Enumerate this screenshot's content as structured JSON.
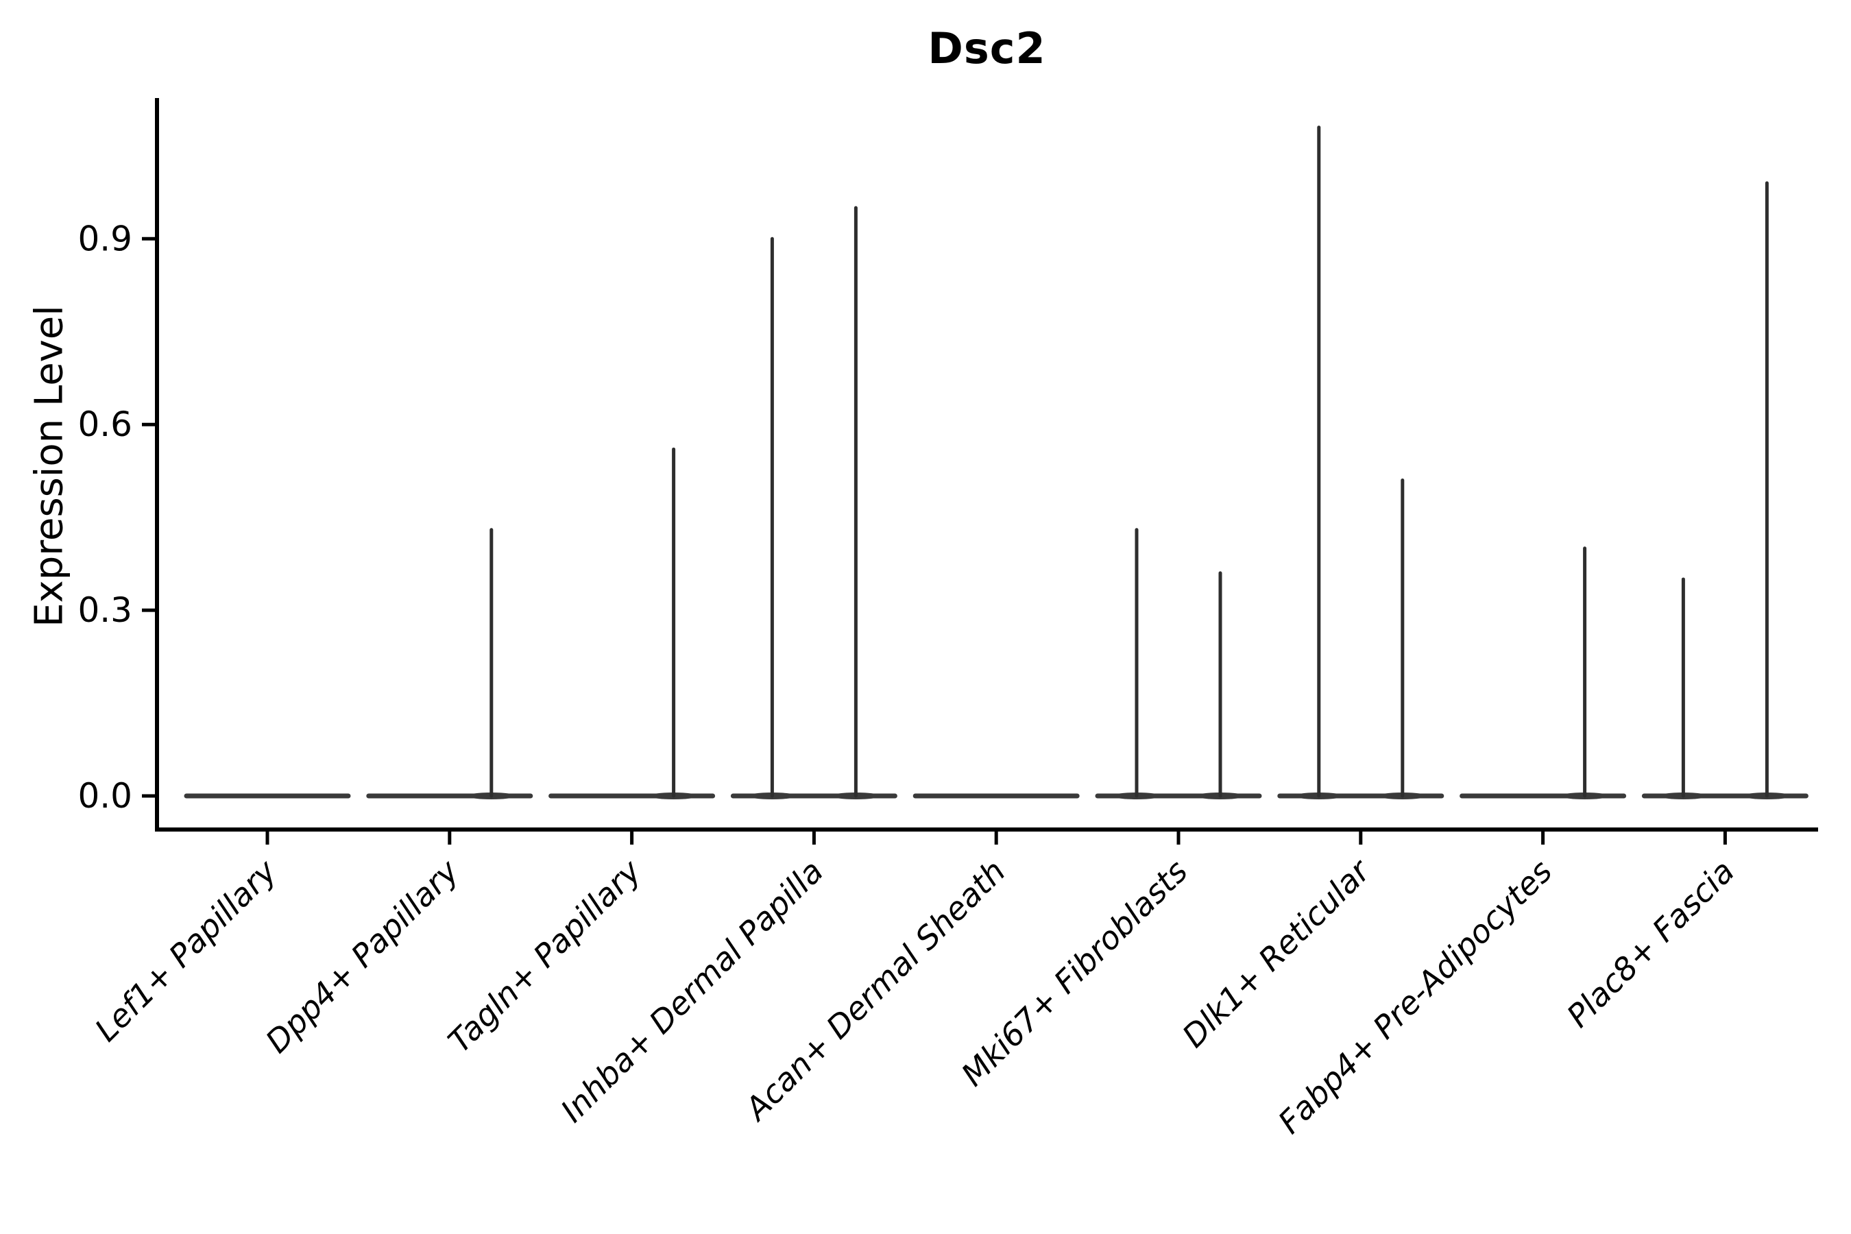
{
  "figure": {
    "background": "#ffffff",
    "colors": {
      "axis": "#000000",
      "text": "#000000",
      "violin_spike": "#2e2e2e",
      "violin_baseline": "#3a3a3a"
    }
  },
  "chart_data": {
    "type": "violin",
    "title": "Dsc2",
    "xlabel": "",
    "ylabel": "Expression Level",
    "legend": "none",
    "grid": false,
    "ylim": [
      -0.05,
      1.13
    ],
    "yticks": [
      0.0,
      0.3,
      0.6,
      0.9
    ],
    "ytick_labels": [
      "0.0",
      "0.3",
      "0.6",
      "0.9"
    ],
    "categories": [
      "Lef1+ Papillary",
      "Dpp4+ Papillary",
      "Tagln+ Papillary",
      "Inhba+ Dermal Papilla",
      "Acan+ Dermal Sheath",
      "Mki67+ Fibroblasts",
      "Dlk1+ Reticular",
      "Fabp4+ Pre-Adipocytes",
      "Plac8+ Fascia"
    ],
    "violins_note": "Each category holds two ultra-thin violins (left/right sub-group); bulk of cells at 0 expression forms the flat baseline, peak = maximum expression spike height.",
    "violins": [
      {
        "category": "Lef1+ Papillary",
        "left_peak": 0.0,
        "right_peak": 0.0
      },
      {
        "category": "Dpp4+ Papillary",
        "left_peak": 0.0,
        "right_peak": 0.43
      },
      {
        "category": "Tagln+ Papillary",
        "left_peak": 0.0,
        "right_peak": 0.56
      },
      {
        "category": "Inhba+ Dermal Papilla",
        "left_peak": 0.9,
        "right_peak": 0.95
      },
      {
        "category": "Acan+ Dermal Sheath",
        "left_peak": 0.0,
        "right_peak": 0.0
      },
      {
        "category": "Mki67+ Fibroblasts",
        "left_peak": 0.43,
        "right_peak": 0.36
      },
      {
        "category": "Dlk1+ Reticular",
        "left_peak": 1.08,
        "right_peak": 0.51
      },
      {
        "category": "Fabp4+ Pre-Adipocytes",
        "left_peak": 0.0,
        "right_peak": 0.4
      },
      {
        "category": "Plac8+ Fascia",
        "left_peak": 0.35,
        "right_peak": 0.99
      }
    ]
  }
}
